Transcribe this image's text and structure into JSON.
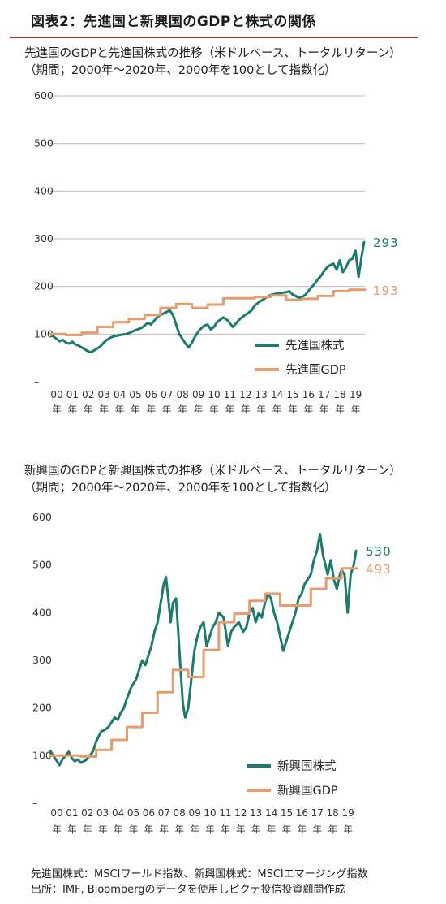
{
  "page": {
    "title": "図表2：先進国と新興国のGDPと株式の関係"
  },
  "footer": {
    "note1": "先進国株式：MSCIワールド指数、新興国株式：MSCIエマージング指数",
    "note2": "出所：IMF, Bloombergのデータを使用しピクテ投信投資顧問作成"
  },
  "colors": {
    "stock": "#1f7a6e",
    "gdp": "#e59c6e",
    "grid": "#bdbdbd",
    "title_rule": "#a33a3a"
  },
  "chart_data": [
    {
      "type": "line",
      "title": "先進国のGDPと先進国株式の推移（米ドルベース、トータルリターン）",
      "subtitle": "（期間；2000年～2020年、2000年を100として指数化）",
      "ylim": [
        0,
        600
      ],
      "yticks": [
        "–",
        "100",
        "200",
        "300",
        "400",
        "500",
        "600"
      ],
      "xlim": [
        2000,
        2020
      ],
      "x_tick_labels": [
        "00",
        "01",
        "02",
        "03",
        "04",
        "05",
        "06",
        "07",
        "08",
        "09",
        "10",
        "11",
        "12",
        "13",
        "14",
        "15",
        "16",
        "17",
        "18",
        "19"
      ],
      "x_tick_suffix": "年",
      "grid": true,
      "legend_position": "bottom-right",
      "series": [
        {
          "name": "先進国株式",
          "end_label": "293",
          "style": "stock",
          "x": [
            2000,
            2000.2,
            2000.4,
            2000.6,
            2000.8,
            2001,
            2001.2,
            2001.4,
            2001.6,
            2001.8,
            2002,
            2002.2,
            2002.4,
            2002.6,
            2002.8,
            2003,
            2003.2,
            2003.4,
            2003.6,
            2003.8,
            2004,
            2004.4,
            2004.8,
            2005,
            2005.4,
            2005.8,
            2006,
            2006.2,
            2006.4,
            2006.6,
            2006.8,
            2007,
            2007.3,
            2007.6,
            2007.8,
            2008,
            2008.2,
            2008.4,
            2008.6,
            2008.8,
            2009,
            2009.2,
            2009.4,
            2009.6,
            2009.8,
            2010,
            2010.2,
            2010.4,
            2010.6,
            2010.8,
            2011,
            2011.3,
            2011.6,
            2011.8,
            2012,
            2012.3,
            2012.6,
            2012.8,
            2013,
            2013.4,
            2013.8,
            2014,
            2014.4,
            2014.8,
            2015,
            2015.2,
            2015.4,
            2015.6,
            2015.8,
            2016,
            2016.2,
            2016.4,
            2016.6,
            2016.8,
            2017,
            2017.2,
            2017.4,
            2017.6,
            2017.8,
            2018,
            2018.2,
            2018.4,
            2018.6,
            2018.8,
            2019,
            2019.2,
            2019.4,
            2019.6,
            2019.8,
            2019.95
          ],
          "values": [
            100,
            95,
            90,
            85,
            88,
            82,
            80,
            84,
            78,
            76,
            72,
            68,
            64,
            62,
            66,
            70,
            75,
            82,
            88,
            92,
            95,
            98,
            100,
            102,
            108,
            113,
            118,
            124,
            120,
            128,
            135,
            140,
            145,
            150,
            140,
            120,
            100,
            90,
            80,
            72,
            82,
            95,
            105,
            112,
            118,
            120,
            110,
            115,
            125,
            130,
            135,
            128,
            115,
            122,
            130,
            138,
            145,
            150,
            160,
            170,
            178,
            182,
            185,
            187,
            188,
            190,
            183,
            180,
            176,
            178,
            182,
            190,
            198,
            205,
            215,
            222,
            232,
            240,
            245,
            248,
            235,
            255,
            230,
            240,
            255,
            258,
            275,
            220,
            265,
            293
          ]
        },
        {
          "name": "先進国GDP",
          "end_label": "193",
          "style": "gdp",
          "steps": [
            [
              2000,
              100
            ],
            [
              2001,
              98
            ],
            [
              2002,
              103
            ],
            [
              2003,
              115
            ],
            [
              2004,
              125
            ],
            [
              2005,
              132
            ],
            [
              2006,
              140
            ],
            [
              2007,
              155
            ],
            [
              2008,
              163
            ],
            [
              2009,
              155
            ],
            [
              2010,
              162
            ],
            [
              2011,
              175
            ],
            [
              2012,
              175
            ],
            [
              2013,
              178
            ],
            [
              2014,
              181
            ],
            [
              2015,
              172
            ],
            [
              2016,
              174
            ],
            [
              2017,
              180
            ],
            [
              2018,
              190
            ],
            [
              2019,
              193
            ]
          ],
          "x_end": 2020,
          "values_end": 193
        }
      ]
    },
    {
      "type": "line",
      "title": "新興国のGDPと新興国株式の推移（米ドルベース、トータルリターン）",
      "subtitle": "（期間；2000年～2020年、2000年を100として指数化）",
      "ylim": [
        0,
        600
      ],
      "yticks": [
        "–",
        "100",
        "200",
        "300",
        "400",
        "500",
        "600"
      ],
      "xlim": [
        2000,
        2020
      ],
      "x_tick_labels": [
        "00",
        "01",
        "02",
        "03",
        "04",
        "05",
        "06",
        "07",
        "08",
        "09",
        "10",
        "11",
        "12",
        "13",
        "14",
        "15",
        "16",
        "17",
        "18",
        "19"
      ],
      "x_tick_suffix": "年",
      "grid": false,
      "legend_position": "bottom-right",
      "series": [
        {
          "name": "新興国株式",
          "end_label": "530",
          "style": "stock",
          "x": [
            2000,
            2000.2,
            2000.4,
            2000.6,
            2000.8,
            2001,
            2001.2,
            2001.4,
            2001.6,
            2001.8,
            2002,
            2002.3,
            2002.6,
            2002.8,
            2003,
            2003.3,
            2003.6,
            2003.8,
            2004,
            2004.2,
            2004.4,
            2004.6,
            2004.8,
            2005,
            2005.3,
            2005.6,
            2005.8,
            2006,
            2006.2,
            2006.4,
            2006.6,
            2006.8,
            2007,
            2007.2,
            2007.4,
            2007.55,
            2007.7,
            2007.85,
            2008,
            2008.2,
            2008.35,
            2008.5,
            2008.65,
            2008.8,
            2009,
            2009.2,
            2009.4,
            2009.6,
            2009.8,
            2010,
            2010.2,
            2010.4,
            2010.6,
            2010.8,
            2011,
            2011.3,
            2011.6,
            2011.8,
            2012,
            2012.3,
            2012.6,
            2012.8,
            2013,
            2013.2,
            2013.4,
            2013.6,
            2013.8,
            2014,
            2014.2,
            2014.4,
            2014.6,
            2014.8,
            2015,
            2015.2,
            2015.4,
            2015.6,
            2015.8,
            2016,
            2016.2,
            2016.4,
            2016.6,
            2016.8,
            2017,
            2017.2,
            2017.4,
            2017.6,
            2017.8,
            2017.95,
            2018.1,
            2018.3,
            2018.5,
            2018.7,
            2018.9,
            2019,
            2019.2,
            2019.4,
            2019.6,
            2019.8,
            2019.95
          ],
          "values": [
            110,
            100,
            90,
            80,
            92,
            100,
            108,
            95,
            88,
            92,
            85,
            90,
            100,
            110,
            130,
            150,
            155,
            160,
            170,
            180,
            175,
            190,
            200,
            220,
            245,
            260,
            280,
            300,
            290,
            310,
            330,
            360,
            380,
            420,
            460,
            475,
            430,
            380,
            420,
            430,
            360,
            280,
            210,
            180,
            200,
            260,
            320,
            350,
            370,
            380,
            330,
            350,
            370,
            380,
            400,
            390,
            330,
            360,
            370,
            380,
            360,
            370,
            400,
            410,
            380,
            400,
            390,
            420,
            440,
            430,
            400,
            380,
            350,
            320,
            340,
            360,
            380,
            400,
            430,
            440,
            460,
            470,
            480,
            510,
            530,
            565,
            520,
            500,
            480,
            510,
            470,
            450,
            480,
            490,
            480,
            400,
            480,
            500,
            530
          ]
        },
        {
          "name": "新興国GDP",
          "end_label": "493",
          "style": "gdp",
          "steps": [
            [
              2000,
              100
            ],
            [
              2002,
              98
            ],
            [
              2003,
              112
            ],
            [
              2004,
              133
            ],
            [
              2005,
              160
            ],
            [
              2006,
              190
            ],
            [
              2007,
              233
            ],
            [
              2008,
              280
            ],
            [
              2009,
              265
            ],
            [
              2010,
              322
            ],
            [
              2011,
              380
            ],
            [
              2012,
              398
            ],
            [
              2013,
              425
            ],
            [
              2014,
              440
            ],
            [
              2015,
              415
            ],
            [
              2016,
              415
            ],
            [
              2017,
              450
            ],
            [
              2018,
              472
            ],
            [
              2019,
              493
            ]
          ],
          "x_end": 2020,
          "values_end": 493
        }
      ]
    }
  ]
}
